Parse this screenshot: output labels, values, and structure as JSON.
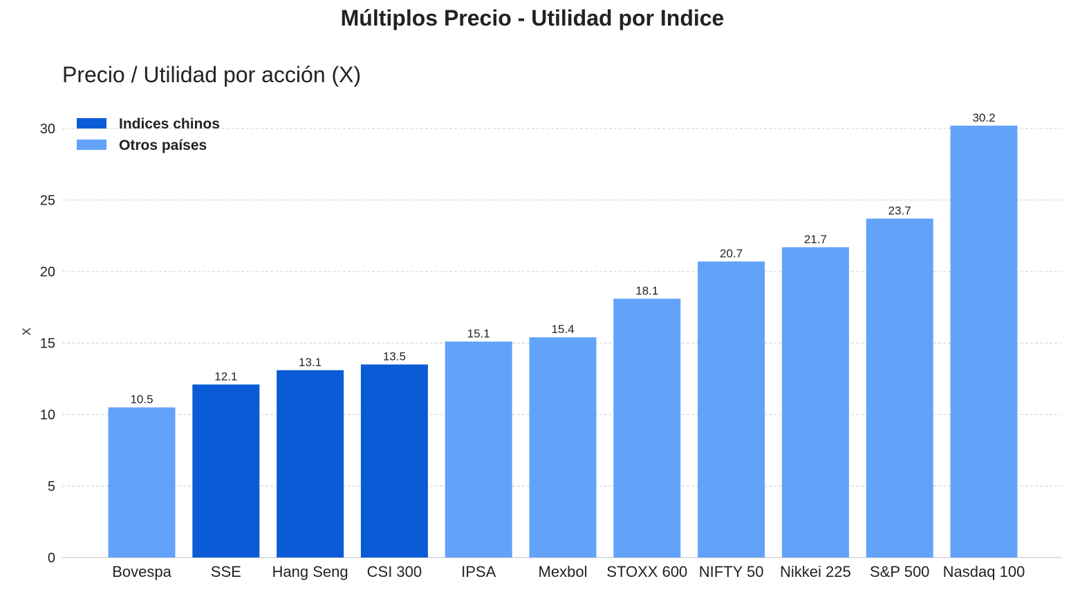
{
  "title": "Múltiplos Precio - Utilidad por Indice",
  "chart_data": {
    "type": "bar",
    "title": "Múltiplos Precio - Utilidad por Indice",
    "subtitle": "Precio / Utilidad por acción (X)",
    "xlabel": "",
    "ylabel": "X",
    "ylim": [
      0,
      31.5
    ],
    "yticks": [
      0,
      5,
      10,
      15,
      20,
      25,
      30
    ],
    "grid": true,
    "legend_position": "top-left",
    "categories": [
      "Bovespa",
      "SSE",
      "Hang Seng",
      "CSI 300",
      "IPSA",
      "Mexbol",
      "STOXX 600",
      "NIFTY 50",
      "Nikkei 225",
      "S&P 500",
      "Nasdaq 100"
    ],
    "values": [
      10.5,
      12.1,
      13.1,
      13.5,
      15.1,
      15.4,
      18.1,
      20.7,
      21.7,
      23.7,
      30.2
    ],
    "groups": [
      "Otros países",
      "Indices chinos",
      "Indices chinos",
      "Indices chinos",
      "Otros países",
      "Otros países",
      "Otros países",
      "Otros países",
      "Otros países",
      "Otros países",
      "Otros países"
    ],
    "legend": [
      {
        "name": "Indices chinos",
        "color": "#0b5bd7"
      },
      {
        "name": "Otros países",
        "color": "#62a3f9"
      }
    ],
    "colors": {
      "grid": "#cccccc",
      "axis": "#cccccc"
    }
  }
}
